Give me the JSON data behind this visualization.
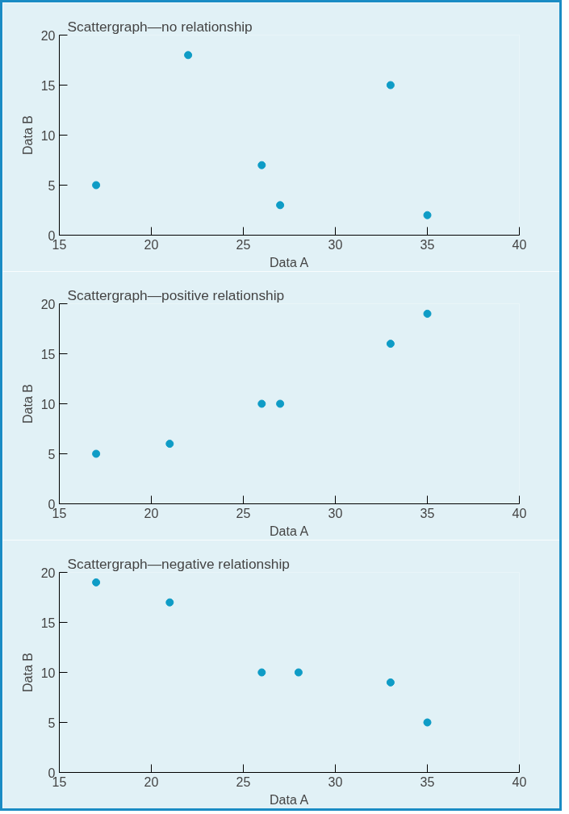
{
  "chart_data": [
    {
      "type": "scatter",
      "title": "Scattergraph—no relationship",
      "xlabel": "Data A",
      "ylabel": "Data B",
      "x": [
        17,
        22,
        26,
        27,
        33,
        35
      ],
      "series": [
        {
          "color": "#0e9cc6",
          "values": [
            5,
            18,
            7,
            3,
            15,
            2
          ]
        }
      ],
      "xlim": [
        15,
        40
      ],
      "ylim": [
        0,
        20
      ],
      "xticks": [
        15,
        20,
        25,
        30,
        35,
        40
      ],
      "yticks": [
        0,
        5,
        10,
        15,
        20
      ],
      "grid": false,
      "marker": "circle"
    },
    {
      "type": "scatter",
      "title": "Scattergraph—positive relationship",
      "xlabel": "Data A",
      "ylabel": "Data B",
      "x": [
        17,
        21,
        26,
        27,
        33,
        35
      ],
      "series": [
        {
          "color": "#0e9cc6",
          "values": [
            5,
            6,
            10,
            10,
            16,
            19
          ]
        }
      ],
      "xlim": [
        15,
        40
      ],
      "ylim": [
        0,
        20
      ],
      "xticks": [
        15,
        20,
        25,
        30,
        35,
        40
      ],
      "yticks": [
        0,
        5,
        10,
        15,
        20
      ],
      "grid": false,
      "marker": "circle"
    },
    {
      "type": "scatter",
      "title": "Scattergraph—negative relationship",
      "xlabel": "Data A",
      "ylabel": "Data B",
      "x": [
        17,
        21,
        26,
        28,
        33,
        35
      ],
      "series": [
        {
          "color": "#0e9cc6",
          "values": [
            19,
            17,
            10,
            10,
            9,
            5
          ]
        }
      ],
      "xlim": [
        15,
        40
      ],
      "ylim": [
        0,
        20
      ],
      "xticks": [
        15,
        20,
        25,
        30,
        35,
        40
      ],
      "yticks": [
        0,
        5,
        10,
        15,
        20
      ],
      "grid": false,
      "marker": "circle"
    }
  ]
}
